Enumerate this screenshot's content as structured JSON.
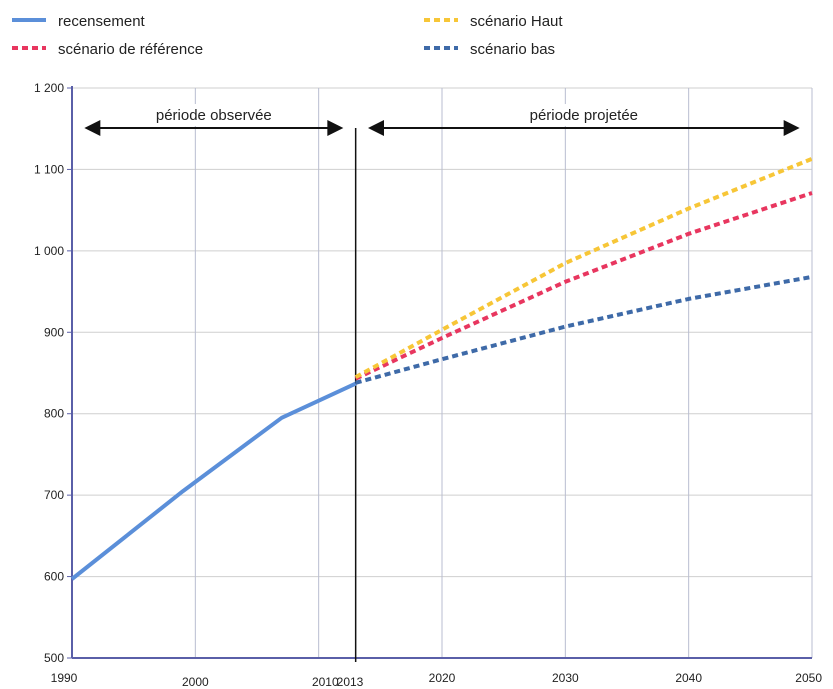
{
  "chart_data": {
    "type": "line",
    "title": "",
    "xlabel": "",
    "ylabel": "",
    "xlim": [
      1990,
      2050
    ],
    "ylim": [
      500,
      1200
    ],
    "grid": true,
    "legend": "top",
    "x_ticks": [
      {
        "value": 1990,
        "label": "1990"
      },
      {
        "value": 2000,
        "label": "2000"
      },
      {
        "value": 2010,
        "label": "2010"
      },
      {
        "value": 2013,
        "label": "2013"
      },
      {
        "value": 2020,
        "label": "2020"
      },
      {
        "value": 2030,
        "label": "2030"
      },
      {
        "value": 2040,
        "label": "2040"
      },
      {
        "value": 2050,
        "label": "2050"
      }
    ],
    "y_ticks": [
      {
        "value": 500,
        "label": "500"
      },
      {
        "value": 600,
        "label": "600"
      },
      {
        "value": 700,
        "label": "700"
      },
      {
        "value": 800,
        "label": "800"
      },
      {
        "value": 900,
        "label": "900"
      },
      {
        "value": 1000,
        "label": "1 000"
      },
      {
        "value": 1100,
        "label": "1 100"
      },
      {
        "value": 1200,
        "label": "1 200"
      }
    ],
    "series": [
      {
        "name": "recensement",
        "color": "#5b8fd9",
        "style": "solid",
        "x": [
          1990,
          1999,
          2007,
          2013
        ],
        "y": [
          597,
          705,
          795,
          837
        ]
      },
      {
        "name": "scénario de référence",
        "color": "#e8365f",
        "style": "dotted",
        "x": [
          2013,
          2020,
          2030,
          2040,
          2050
        ],
        "y": [
          843,
          893,
          962,
          1021,
          1071
        ]
      },
      {
        "name": "scénario Haut",
        "color": "#f7c637",
        "style": "dotted",
        "x": [
          2013,
          2020,
          2030,
          2040,
          2050
        ],
        "y": [
          845,
          903,
          985,
          1052,
          1113
        ]
      },
      {
        "name": "scénario bas",
        "color": "#3e6aa8",
        "style": "dotted",
        "x": [
          2013,
          2020,
          2030,
          2040,
          2050
        ],
        "y": [
          838,
          867,
          907,
          941,
          968
        ]
      }
    ],
    "annotations": {
      "divider_x": 2013,
      "observed": {
        "label": "période observée",
        "from": 1991,
        "to": 2012
      },
      "projected": {
        "label": "période projetée",
        "from": 2014,
        "to": 2049
      }
    }
  }
}
